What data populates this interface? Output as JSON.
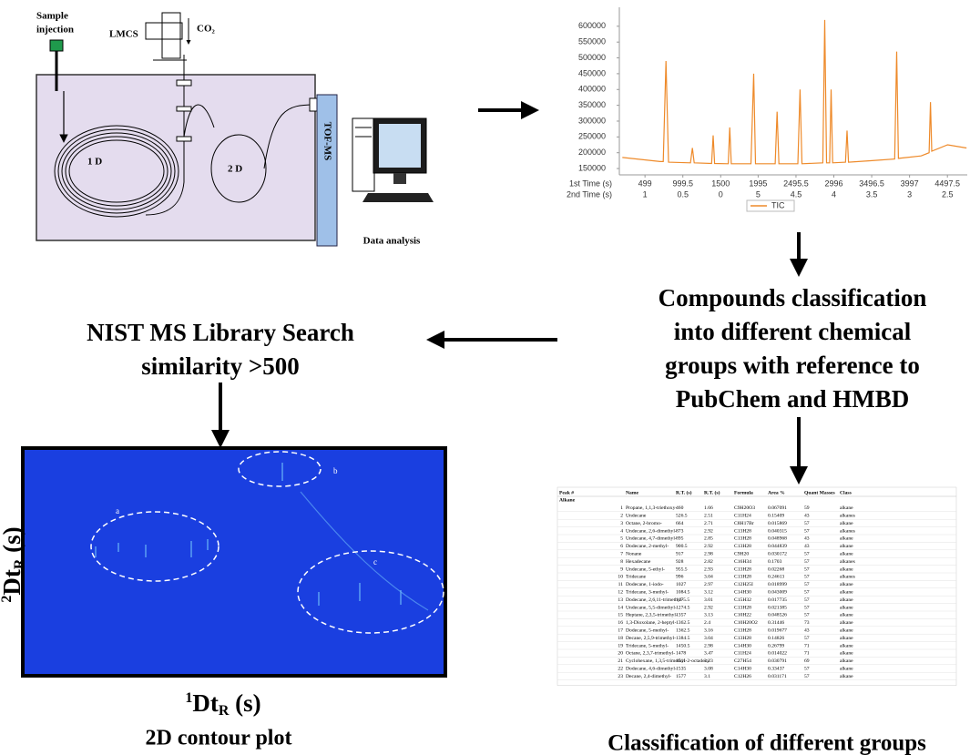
{
  "instrument": {
    "sample_injection": [
      "Sample",
      "injection"
    ],
    "lmcs": "LMCS",
    "co2": "CO₂",
    "first_dim": "1 D",
    "second_dim": "2 D",
    "tof_ms": "TOF-MS",
    "data_analysis": "Data analysis"
  },
  "chart_data": {
    "type": "line",
    "xlim": [
      160,
      4760
    ],
    "ylim": [
      130000,
      660000
    ],
    "xticks": [
      499,
      999.5,
      1500,
      1995,
      2495.5,
      2996,
      3496.5,
      3997,
      4497.5
    ],
    "x2_tick_labels": [
      1,
      0.5,
      0,
      5,
      4.5,
      4,
      3.5,
      3,
      2.5
    ],
    "x_row_labels": [
      "1st Time (s)",
      "2nd Time (s)"
    ],
    "yticks": [
      150000,
      200000,
      250000,
      300000,
      350000,
      400000,
      450000,
      500000,
      550000,
      600000
    ],
    "legend": "bottom",
    "series": [
      {
        "name": "TIC",
        "color": "#ee8a2a",
        "x": [
          200,
          700,
          740,
          776,
          810,
          1100,
          1126,
          1150,
          1380,
          1400,
          1420,
          1600,
          1620,
          1640,
          1900,
          1936,
          1960,
          2220,
          2246,
          2270,
          2520,
          2549,
          2575,
          2850,
          2875,
          2900,
          2940,
          2960,
          2980,
          3150,
          3170,
          3190,
          3500,
          3800,
          3827,
          3850,
          4150,
          4255,
          4273,
          4290,
          4500,
          4750
        ],
        "values": [
          185000,
          172000,
          172000,
          490000,
          170000,
          168000,
          215000,
          168000,
          166000,
          255000,
          166000,
          165000,
          280000,
          165000,
          165000,
          450000,
          165000,
          165000,
          330000,
          165000,
          165000,
          400000,
          165000,
          168000,
          620000,
          168000,
          168000,
          400000,
          168000,
          170000,
          270000,
          170000,
          175000,
          180000,
          520000,
          182000,
          190000,
          200000,
          360000,
          205000,
          225000,
          215000
        ]
      }
    ]
  },
  "nist": [
    "NIST MS Library Search",
    "similarity >500"
  ],
  "classification": [
    "Compounds classification",
    "into different chemical",
    "groups with reference to",
    "PubChem and HMBD"
  ],
  "contour": {
    "y_label": {
      "sup": "2",
      "base": "Dt",
      "sub": "R",
      "unit": " (s)"
    },
    "x_label": {
      "sup": "1",
      "base": "Dt",
      "sub": "R",
      "unit": " (s)"
    },
    "regions": [
      "a",
      "b",
      "c"
    ],
    "caption": "2D contour plot"
  },
  "table": {
    "header": [
      "Peak #",
      "Name",
      "R.T. (s)",
      "R.T. (s)",
      "Formula",
      "Area %",
      "Quant Masses",
      "Class"
    ],
    "group": "Alkane",
    "rows": [
      [
        1,
        "Propane, 1,1,3-triethoxy-",
        460,
        1.66,
        "C9H20O3",
        0.067091,
        59,
        "alkane"
      ],
      [
        2,
        "Undecane",
        526.5,
        2.51,
        "C11H24",
        0.15409,
        43,
        "alkanes"
      ],
      [
        3,
        "Octane, 2-bromo-",
        664,
        2.71,
        "C8H17Br",
        0.015869,
        57,
        "alkane"
      ],
      [
        4,
        "Undecane, 2,6-dimethyl-",
        873,
        2.92,
        "C13H28",
        0.040315,
        57,
        "alkanes"
      ],
      [
        5,
        "Undecane, 4,7-dimethyl-",
        895,
        2.85,
        "C13H28",
        0.048968,
        43,
        "alkane"
      ],
      [
        6,
        "Dodecane, 2-methyl-",
        900.5,
        2.92,
        "C13H28",
        0.044839,
        43,
        "alkane"
      ],
      [
        7,
        "Nonane",
        917,
        2.98,
        "C9H20",
        0.030172,
        57,
        "alkane"
      ],
      [
        8,
        "Hexadecane",
        928,
        2.82,
        "C16H34",
        0.1703,
        57,
        "alkanes"
      ],
      [
        9,
        "Undecane, 5-ethyl-",
        955.5,
        2.93,
        "C13H28",
        0.02268,
        57,
        "alkane"
      ],
      [
        10,
        "Tridecane",
        996,
        3.04,
        "C13H28",
        0.24613,
        57,
        "alkanes"
      ],
      [
        11,
        "Dodecane, 1-iodo-",
        1027,
        2.97,
        "C12H25I",
        0.018999,
        57,
        "alkane"
      ],
      [
        12,
        "Tridecane, 3-methyl-",
        1084.5,
        3.12,
        "C14H30",
        0.043009,
        57,
        "alkane"
      ],
      [
        13,
        "Dodecane, 2,6,11-trimethyl-",
        1175.5,
        3.01,
        "C15H32",
        0.017735,
        57,
        "alkane"
      ],
      [
        14,
        "Undecane, 5,5-dimethyl-",
        1274.5,
        2.92,
        "C13H28",
        0.021385,
        57,
        "alkane"
      ],
      [
        15,
        "Heptane, 2,3,5-trimethyl-",
        1357,
        3.13,
        "C10H22",
        0.048526,
        57,
        "alkane"
      ],
      [
        16,
        "1,3-Dioxolane, 2-heptyl-",
        1362.5,
        2.4,
        "C10H20O2",
        0.31446,
        73,
        "alkane"
      ],
      [
        17,
        "Dodecane, 5-methyl-",
        1362.5,
        3.16,
        "C13H28",
        0.019677,
        43,
        "alkane"
      ],
      [
        18,
        "Decane, 2,5,9-trimethyl-",
        1384.5,
        3.04,
        "C13H28",
        0.14826,
        57,
        "alkane"
      ],
      [
        19,
        "Tridecane, 5-methyl-",
        1450.5,
        2.98,
        "C14H30",
        0.26799,
        71,
        "alkane"
      ],
      [
        20,
        "Octane, 2,3,7-trimethyl-",
        1478,
        3.47,
        "C11H24",
        0.014022,
        71,
        "alkane"
      ],
      [
        21,
        "Cyclohexane, 1,3,5-trimethyl-2-octadecy",
        1511,
        3.23,
        "C27H54",
        0.030791,
        69,
        "alkane"
      ],
      [
        22,
        "Dodecane, 4,6-dimethyl-",
        1535,
        3.08,
        "C14H30",
        0.33437,
        57,
        "alkane"
      ],
      [
        23,
        "Decane, 2,4-dimethyl-",
        1577,
        3.1,
        "C12H26",
        0.031171,
        57,
        "alkane"
      ]
    ]
  },
  "table_caption": "Classification of different groups"
}
